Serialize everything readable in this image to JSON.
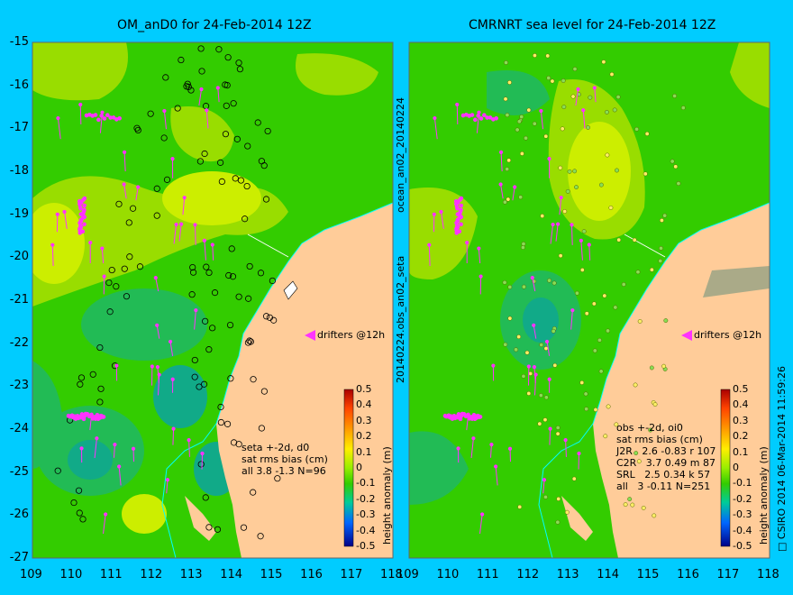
{
  "left_panel": {
    "title": "OM_anD0 for 24-Feb-2014 12Z",
    "drifters_label": "drifters @12h",
    "stats_lines": [
      "seta +-2d, d0",
      "sat rms bias (cm)",
      "all 3.8 -1.3 N=96"
    ]
  },
  "right_panel": {
    "title": "CMRNRT sea level  for 24-Feb-2014 12Z",
    "drifters_label": "drifters @12h",
    "stats_lines": [
      "obs +-2d, oi0",
      "sat rms bias (cm)",
      "J2R   2.6 -0.83 r 107",
      "C2R   3.7 0.49 m 87",
      "SRL   2.5 0.34 k 57",
      "all   3 -0.11 N=251"
    ]
  },
  "side_labels": {
    "top": "ocean_an02_20140224",
    "bottom": "20140224.obs_an02_seta",
    "right": "□ CSIRO 2014   06-Mar-2014 11:59:26"
  },
  "colorbar": {
    "label": "height anomaly (m)",
    "ticks": [
      "0.5",
      "0.4",
      "0.3",
      "0.2",
      "0.1",
      "0",
      "-0.1",
      "-0.2",
      "-0.3",
      "-0.4",
      "-0.5"
    ]
  },
  "axes": {
    "y_ticks": [
      "-15",
      "-16",
      "-17",
      "-18",
      "-19",
      "-20",
      "-21",
      "-22",
      "-23",
      "-24",
      "-25",
      "-26",
      "-27"
    ],
    "x_ticks": [
      "109",
      "110",
      "111",
      "112",
      "113",
      "114",
      "115",
      "116",
      "117",
      "118"
    ],
    "lon_range": [
      109,
      118
    ],
    "lat_range": [
      -27,
      -15
    ]
  },
  "colors": {
    "background": "#00ccff",
    "sea_base": "#33cc00",
    "land": "#ffcc99",
    "drifter": "#ff33ff",
    "coast_line": "#00ffff"
  }
}
